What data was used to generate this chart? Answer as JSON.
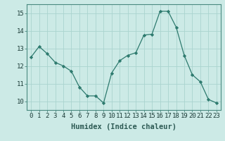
{
  "x": [
    0,
    1,
    2,
    3,
    4,
    5,
    6,
    7,
    8,
    9,
    10,
    11,
    12,
    13,
    14,
    15,
    16,
    17,
    18,
    19,
    20,
    21,
    22,
    23
  ],
  "y": [
    12.5,
    13.1,
    12.7,
    12.2,
    12.0,
    11.7,
    10.8,
    10.3,
    10.3,
    9.9,
    11.6,
    12.3,
    12.6,
    12.75,
    13.75,
    13.8,
    15.1,
    15.1,
    14.2,
    12.6,
    11.5,
    11.1,
    10.1,
    9.9
  ],
  "xlabel": "Humidex (Indice chaleur)",
  "ylim": [
    9.5,
    15.5
  ],
  "xlim": [
    -0.5,
    23.5
  ],
  "yticks": [
    10,
    11,
    12,
    13,
    14,
    15
  ],
  "xticks": [
    0,
    1,
    2,
    3,
    4,
    5,
    6,
    7,
    8,
    9,
    10,
    11,
    12,
    13,
    14,
    15,
    16,
    17,
    18,
    19,
    20,
    21,
    22,
    23
  ],
  "line_color": "#2d7a6e",
  "marker_color": "#2d7a6e",
  "bg_color": "#cceae6",
  "grid_color": "#aad4cf",
  "xlabel_fontsize": 7.5,
  "tick_fontsize": 6.5,
  "spine_color": "#4a8a80"
}
